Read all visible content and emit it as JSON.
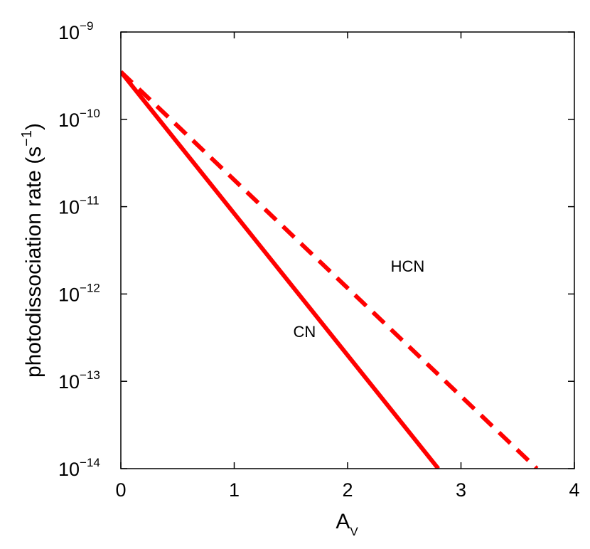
{
  "chart_data": {
    "type": "line",
    "xlabel": "A",
    "xlabel_sub": "V",
    "ylabel": "photodissociation rate (s",
    "ylabel_sup": "−1",
    "ylabel_close": ")",
    "xlim": [
      0,
      4
    ],
    "ylim": [
      1e-14,
      1e-09
    ],
    "yscale": "log",
    "grid": false,
    "x_ticks": [
      "0",
      "1",
      "2",
      "3",
      "4"
    ],
    "y_ticks": [
      {
        "base": "10",
        "exp": "−14"
      },
      {
        "base": "10",
        "exp": "−13"
      },
      {
        "base": "10",
        "exp": "−12"
      },
      {
        "base": "10",
        "exp": "−11"
      },
      {
        "base": "10",
        "exp": "−10"
      },
      {
        "base": "10",
        "exp": "−9"
      }
    ],
    "series": [
      {
        "name": "CN",
        "style": "solid",
        "color": "#ff0000",
        "x": [
          0,
          2.8
        ],
        "y": [
          3.5e-10,
          1e-14
        ],
        "label_at": [
          1.52,
          3.2e-13
        ]
      },
      {
        "name": "HCN",
        "style": "dashed",
        "color": "#ff0000",
        "x": [
          0,
          3.67
        ],
        "y": [
          3.5e-10,
          1e-14
        ],
        "label_at": [
          2.38,
          1.8e-12
        ]
      }
    ]
  }
}
